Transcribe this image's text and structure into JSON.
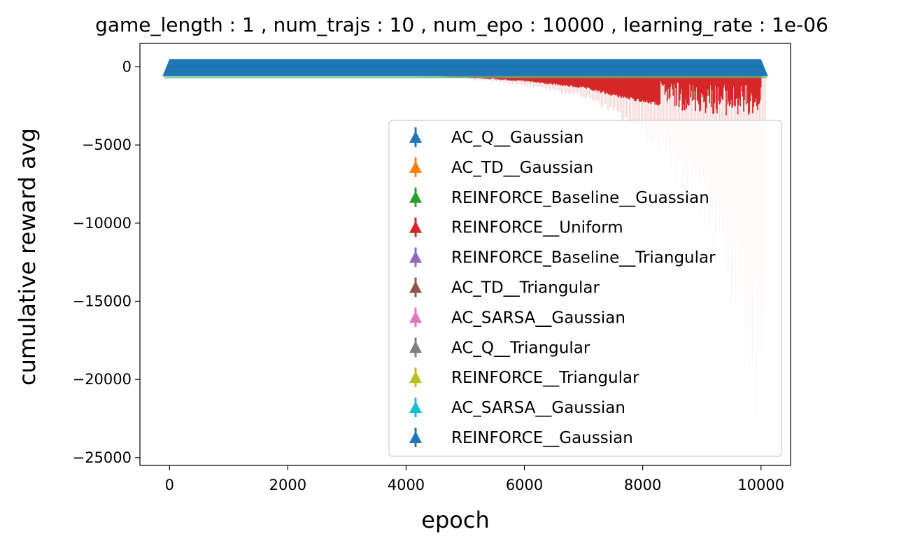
{
  "chart_data": {
    "type": "errorbar",
    "title": "game_length : 1 , num_trajs : 10 , num_epo : 10000 , learning_rate : 1e-06",
    "xlabel": "epoch",
    "ylabel": "cumulative reward avg",
    "xlim": [
      -500,
      10500
    ],
    "ylim": [
      -25500,
      1500
    ],
    "xticks": [
      0,
      2000,
      4000,
      6000,
      8000,
      10000
    ],
    "xtick_labels": [
      "0",
      "2000",
      "4000",
      "6000",
      "8000",
      "10000"
    ],
    "yticks": [
      0,
      -5000,
      -10000,
      -15000,
      -20000,
      -25000
    ],
    "ytick_labels": [
      "0",
      "−5000",
      "−10000",
      "−15000",
      "−20000",
      "−25000"
    ],
    "legend_position": "lower-right",
    "series": [
      {
        "name": "AC_Q__Gaussian",
        "color": "#1f77b4"
      },
      {
        "name": "AC_TD__Gaussian",
        "color": "#ff7f0e"
      },
      {
        "name": "REINFORCE_Baseline__Guassian",
        "color": "#2ca02c"
      },
      {
        "name": "REINFORCE__Uniform",
        "color": "#d62728"
      },
      {
        "name": "REINFORCE_Baseline__Triangular",
        "color": "#9467bd"
      },
      {
        "name": "AC_TD__Triangular",
        "color": "#8c564b"
      },
      {
        "name": "AC_SARSA__Gaussian",
        "color": "#e377c2"
      },
      {
        "name": "AC_Q__Triangular",
        "color": "#7f7f7f"
      },
      {
        "name": "REINFORCE__Triangular",
        "color": "#bcbd22"
      },
      {
        "name": "AC_SARSA__Gaussian",
        "color": "#17becf"
      },
      {
        "name": "REINFORCE__Gaussian",
        "color": "#1f77b4"
      }
    ],
    "uniform_error": {
      "series": "REINFORCE__Uniform",
      "epochs": [
        3000,
        4000,
        5000,
        6000,
        7000,
        7500,
        8000,
        8500,
        9000,
        9500,
        10000
      ],
      "mean_lower": [
        -500,
        -550,
        -700,
        -950,
        -1400,
        -1900,
        -2300,
        -2700,
        -3000,
        -3200,
        -3300
      ],
      "error_lower_min": [
        -500,
        -600,
        -800,
        -1200,
        -2000,
        -3000,
        -4500,
        -7000,
        -10500,
        -15500,
        -24300
      ]
    },
    "band": {
      "mean": 0,
      "upper": 500,
      "lower": -600,
      "x_start": 0,
      "x_end": 10000
    }
  }
}
